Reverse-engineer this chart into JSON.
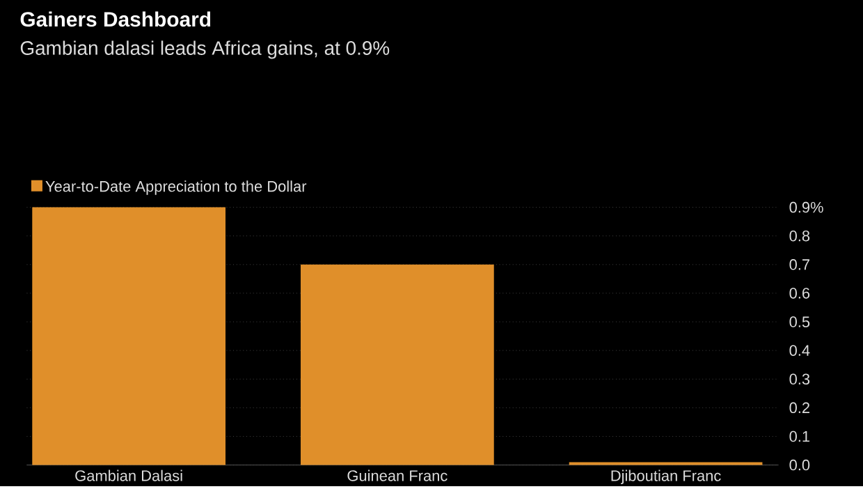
{
  "chart_data": {
    "type": "bar",
    "title": "Gainers Dashboard",
    "subtitle": "Gambian dalasi leads Africa gains, at 0.9%",
    "categories": [
      "Gambian Dalasi",
      "Guinean Franc",
      "Djiboutian Franc"
    ],
    "series": [
      {
        "name": "Year-to-Date Appreciation to the Dollar",
        "color": "#e08f2a",
        "values": [
          0.9,
          0.7,
          0.01
        ]
      }
    ],
    "ylim": [
      0,
      0.9
    ],
    "yticks": [
      {
        "value": 0,
        "label": "0.0"
      },
      0.1,
      0.2,
      0.3,
      0.4,
      0.5,
      0.6,
      0.7,
      0.8,
      {
        "value": 0.9,
        "label": "0.9%"
      }
    ],
    "grid": "y",
    "legend": "top left"
  }
}
